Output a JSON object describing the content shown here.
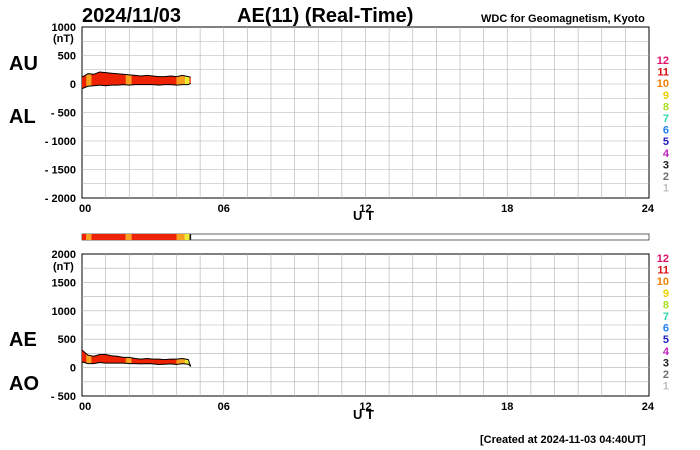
{
  "header": {
    "date": "2024/11/03",
    "title": "AE(11) (Real-Time)",
    "credit": "WDC for Geomagnetism, Kyoto"
  },
  "footer": {
    "created": "[Created at 2024-11-03 04:40UT]"
  },
  "scale": {
    "labels": [
      "12",
      "11",
      "10",
      "9",
      "8",
      "7",
      "6",
      "5",
      "4",
      "3",
      "2",
      "1"
    ],
    "colors": [
      "#e0106a",
      "#d81010",
      "#f08000",
      "#f0d000",
      "#a8e020",
      "#30d8b0",
      "#2080f0",
      "#2020c0",
      "#c020c0",
      "#202020",
      "#707070",
      "#c0c0c0"
    ]
  },
  "colors": {
    "station_fill": "#ee2200",
    "peak_orange": "#f7a020",
    "late_yellow": "#eded30",
    "outline": "#000000",
    "grid": "#b0b0b0"
  },
  "chart_data": [
    {
      "type": "area",
      "id": "au-al",
      "label_top": "AU",
      "label_bottom": "AL",
      "unit": "(nT)",
      "xlabel": "U T",
      "xlim": [
        0,
        24
      ],
      "xticks": [
        "00",
        "06",
        "12",
        "18",
        "24"
      ],
      "ylim": [
        -2000,
        1000
      ],
      "yticks": [
        "1000",
        "500",
        "0",
        "- 500",
        "- 1000",
        "- 1500",
        "- 2000"
      ],
      "series": [
        {
          "name": "AU",
          "x": [
            0,
            0.25,
            0.5,
            0.75,
            1.0,
            1.25,
            1.5,
            1.75,
            2.0,
            2.25,
            2.5,
            2.75,
            3.0,
            3.25,
            3.5,
            3.75,
            4.0,
            4.25,
            4.5,
            4.6
          ],
          "values": [
            120,
            180,
            170,
            210,
            200,
            190,
            180,
            170,
            160,
            150,
            140,
            150,
            140,
            130,
            130,
            140,
            130,
            150,
            130,
            120
          ]
        },
        {
          "name": "AL",
          "x": [
            0,
            0.25,
            0.5,
            0.75,
            1.0,
            1.25,
            1.5,
            1.75,
            2.0,
            2.25,
            2.5,
            2.75,
            3.0,
            3.25,
            3.5,
            3.75,
            4.0,
            4.25,
            4.5,
            4.6
          ],
          "values": [
            -80,
            -40,
            -30,
            -20,
            -30,
            -20,
            -20,
            -10,
            -20,
            -10,
            -10,
            -10,
            -10,
            -20,
            -10,
            -10,
            -20,
            -10,
            -10,
            10
          ]
        }
      ]
    },
    {
      "type": "area",
      "id": "ae-ao",
      "label_top": "AE",
      "label_bottom": "AO",
      "unit": "(nT)",
      "xlabel": "U T",
      "xlim": [
        0,
        24
      ],
      "xticks": [
        "00",
        "06",
        "12",
        "18",
        "24"
      ],
      "ylim": [
        -500,
        2000
      ],
      "yticks": [
        "2000",
        "1500",
        "1000",
        "500",
        "0",
        "- 500"
      ],
      "series": [
        {
          "name": "AE",
          "x": [
            0,
            0.25,
            0.5,
            0.75,
            1.0,
            1.25,
            1.5,
            1.75,
            2.0,
            2.25,
            2.5,
            2.75,
            3.0,
            3.25,
            3.5,
            3.75,
            4.0,
            4.25,
            4.5,
            4.6
          ],
          "values": [
            310,
            220,
            200,
            230,
            230,
            210,
            200,
            180,
            180,
            160,
            150,
            160,
            150,
            150,
            140,
            150,
            150,
            160,
            140,
            20
          ]
        },
        {
          "name": "AO",
          "x": [
            0,
            0.25,
            0.5,
            0.75,
            1.0,
            1.25,
            1.5,
            1.75,
            2.0,
            2.25,
            2.5,
            2.75,
            3.0,
            3.25,
            3.5,
            3.75,
            4.0,
            4.25,
            4.5,
            4.6
          ],
          "values": [
            100,
            70,
            70,
            90,
            80,
            80,
            80,
            80,
            70,
            70,
            65,
            70,
            65,
            55,
            60,
            65,
            55,
            70,
            60,
            20
          ]
        }
      ]
    }
  ],
  "station_bar": {
    "segments": [
      {
        "from": 0,
        "to": 0.18,
        "color": "#ee2200"
      },
      {
        "from": 0.18,
        "to": 0.4,
        "color": "#f7a020"
      },
      {
        "from": 0.4,
        "to": 1.85,
        "color": "#ee2200"
      },
      {
        "from": 1.85,
        "to": 2.1,
        "color": "#f7a020"
      },
      {
        "from": 2.1,
        "to": 4.0,
        "color": "#ee2200"
      },
      {
        "from": 4.0,
        "to": 4.35,
        "color": "#f7a020"
      },
      {
        "from": 4.35,
        "to": 4.55,
        "color": "#eded30"
      },
      {
        "from": 4.55,
        "to": 4.62,
        "color": "#202020"
      }
    ]
  }
}
